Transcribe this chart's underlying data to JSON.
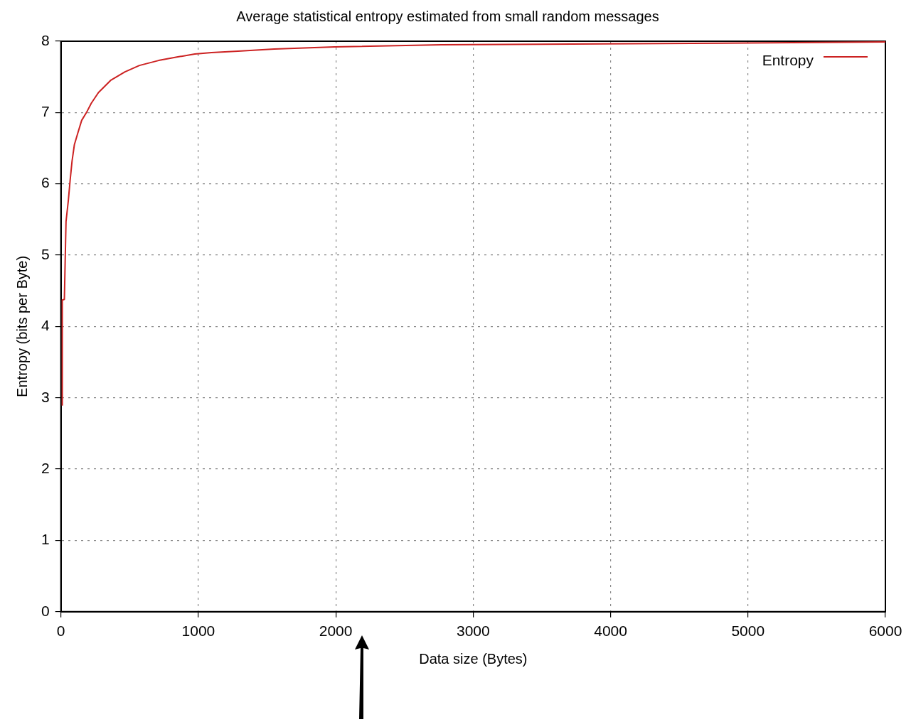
{
  "chart_data": {
    "type": "line",
    "title": "Average statistical entropy estimated from small random messages",
    "xlabel": "Data size (Bytes)",
    "ylabel": "Entropy (bits per Byte)",
    "xlim": [
      0,
      6000
    ],
    "xticks": [
      0,
      1000,
      2000,
      3000,
      4000,
      5000,
      6000
    ],
    "ylim": [
      0,
      8
    ],
    "yticks": [
      0,
      1,
      2,
      3,
      4,
      5,
      6,
      7,
      8
    ],
    "grid": true,
    "legend": "top right",
    "marker": "none",
    "line_style": "solid",
    "series": [
      {
        "name": "Entropy",
        "color": "#cc2222",
        "x": [
          10,
          10,
          25,
          37,
          54,
          67,
          81,
          98,
          124,
          151,
          186,
          221,
          273,
          361,
          466,
          571,
          711,
          851,
          974,
          1096,
          1289,
          1552,
          1991,
          2769,
          4590,
          6000
        ],
        "values": [
          2.89,
          4.37,
          4.38,
          5.47,
          5.77,
          6.05,
          6.32,
          6.55,
          6.72,
          6.89,
          7.0,
          7.13,
          7.28,
          7.45,
          7.57,
          7.66,
          7.73,
          7.78,
          7.82,
          7.84,
          7.86,
          7.89,
          7.92,
          7.95,
          7.97,
          7.99
        ]
      }
    ]
  }
}
